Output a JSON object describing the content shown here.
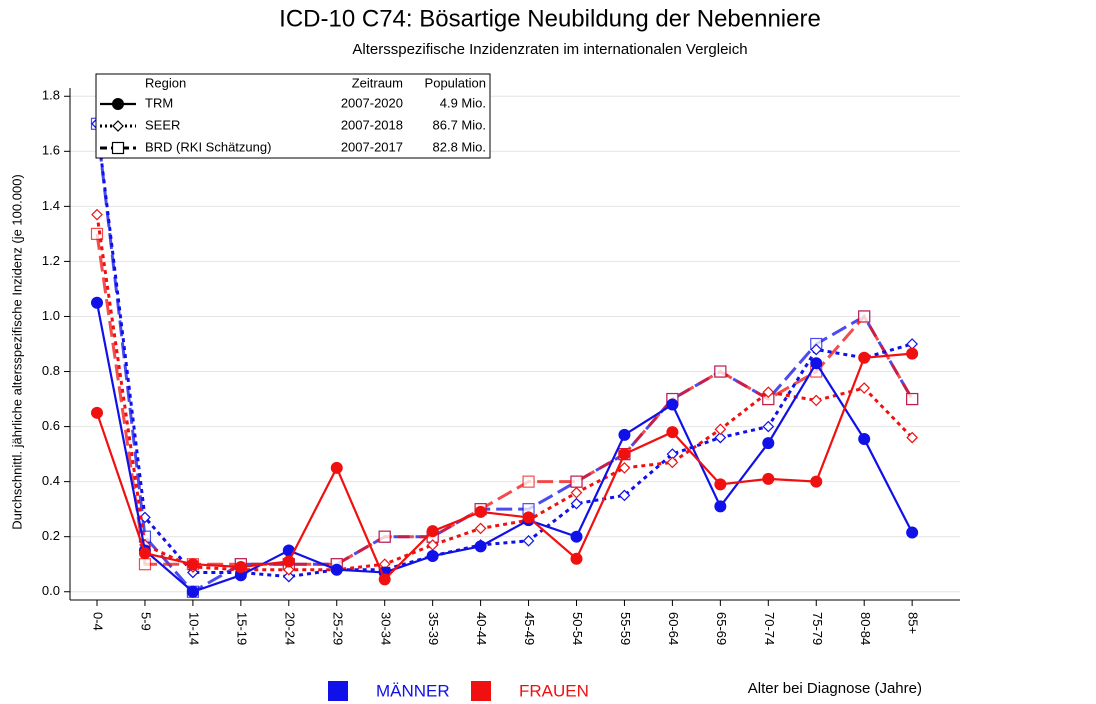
{
  "chart_data": {
    "type": "line",
    "title": "ICD-10 C74: Bösartige Neubildung der Nebenniere",
    "subtitle": "Altersspezifische Inzidenzraten im internationalen Vergleich",
    "y_label": "Durchschnittl. jährliche altersspezifische Inzidenz (je 100.000)",
    "x_label": "Alter bei Diagnose (Jahre)",
    "legend_header": [
      "Region",
      "Zeitraum",
      "Population"
    ],
    "categories": [
      "0-4",
      "5-9",
      "10-14",
      "15-19",
      "20-24",
      "25-29",
      "30-34",
      "35-39",
      "40-44",
      "45-49",
      "50-54",
      "55-59",
      "60-64",
      "65-69",
      "70-74",
      "75-79",
      "80-84",
      "85+"
    ],
    "ylim": [
      -0.03,
      1.83
    ],
    "yticks": [
      {
        "value": 0,
        "label": "0.0"
      },
      0.2,
      0.4,
      0.6,
      0.8,
      {
        "value": 1,
        "label": "1.0"
      },
      1.2,
      1.4,
      1.6,
      1.8
    ],
    "grid": true,
    "sexes": [
      {
        "name": "MÄNNER",
        "color": "#1010e8"
      },
      {
        "name": "FRAUEN",
        "color": "#f01010"
      }
    ],
    "regions": [
      {
        "name": "BRD (RKI Schätzung)",
        "period": "2007-2017",
        "population": "82.8 Mio.",
        "line": "dashed",
        "marker": "square",
        "series": [
          {
            "values": [
              1.7,
              0.2,
              0.0,
              0.1,
              0.1,
              0.1,
              0.2,
              0.2,
              0.3,
              0.3,
              0.4,
              0.5,
              0.7,
              0.8,
              0.7,
              0.9,
              1.0,
              0.7
            ]
          },
          {
            "values": [
              1.3,
              0.1,
              0.1,
              0.1,
              0.1,
              0.1,
              0.2,
              0.2,
              0.3,
              0.4,
              0.4,
              0.5,
              0.7,
              0.8,
              0.7,
              0.8,
              1.0,
              0.7
            ]
          }
        ]
      },
      {
        "name": "SEER",
        "period": "2007-2018",
        "population": "86.7 Mio.",
        "line": "dotted",
        "marker": "diamond",
        "series": [
          {
            "values": [
              1.7,
              0.27,
              0.07,
              0.07,
              0.055,
              0.08,
              0.08,
              0.13,
              0.17,
              0.185,
              0.32,
              0.35,
              0.5,
              0.56,
              0.6,
              0.88,
              0.85,
              0.9
            ]
          },
          {
            "values": [
              1.37,
              0.17,
              0.09,
              0.08,
              0.08,
              0.08,
              0.1,
              0.17,
              0.23,
              0.26,
              0.36,
              0.45,
              0.47,
              0.59,
              0.725,
              0.695,
              0.74,
              0.56
            ]
          }
        ]
      },
      {
        "name": "TRM",
        "period": "2007-2020",
        "population": "4.9 Mio.",
        "line": "solid",
        "marker": "circle",
        "series": [
          {
            "values": [
              1.05,
              0.15,
              0.0,
              0.06,
              0.15,
              0.08,
              0.07,
              0.13,
              0.165,
              0.26,
              0.2,
              0.57,
              0.68,
              0.31,
              0.54,
              0.83,
              0.555,
              0.215
            ]
          },
          {
            "values": [
              0.65,
              0.14,
              0.1,
              0.09,
              0.11,
              0.45,
              0.045,
              0.22,
              0.29,
              0.27,
              0.12,
              0.5,
              0.58,
              0.39,
              0.41,
              0.4,
              0.85,
              0.865
            ]
          }
        ]
      }
    ]
  }
}
